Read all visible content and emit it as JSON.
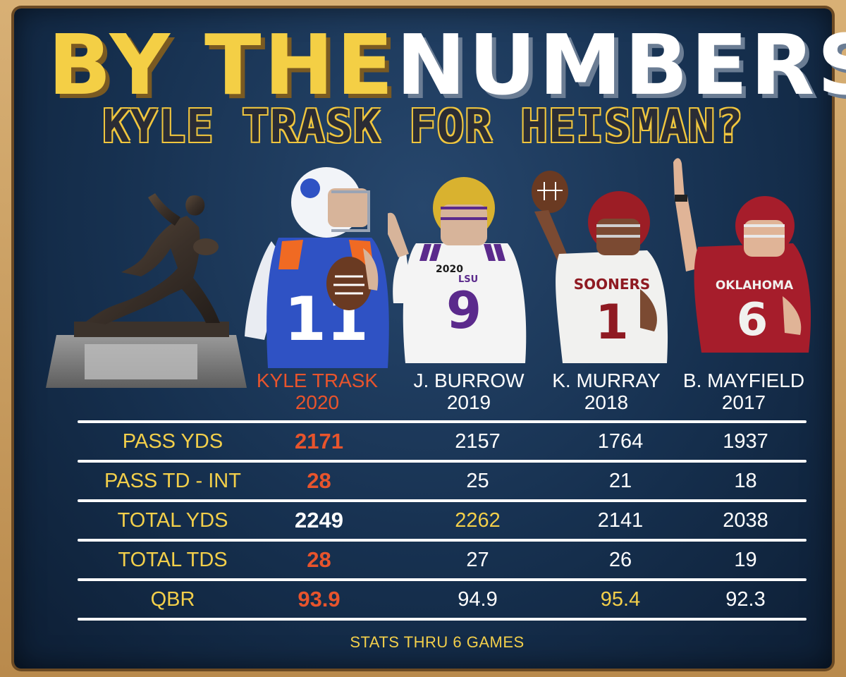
{
  "title": {
    "part1": "BY THE",
    "part2": "NUMBERS"
  },
  "subtitle": "KYLE TRASK FOR HEISMAN?",
  "players": [
    {
      "name": "KYLE  TRASK",
      "year": "2020",
      "jersey": "11",
      "colors": {
        "jersey": "#2f52c4",
        "helmet": "#f2f4f8",
        "accent": "#f06a23"
      }
    },
    {
      "name": "J. BURROW",
      "year": "2019",
      "jersey": "9",
      "colors": {
        "jersey": "#f4f4f4",
        "helmet": "#d9b22f",
        "accent": "#5b2a8c"
      }
    },
    {
      "name": "K. MURRAY",
      "year": "2018",
      "jersey": "1",
      "colors": {
        "jersey": "#f1f1ef",
        "helmet": "#9c1d25",
        "accent": "#8f1a22"
      }
    },
    {
      "name": "B. MAYFIELD",
      "year": "2017",
      "jersey": "6",
      "colors": {
        "jersey": "#a61d2b",
        "helmet": "#a61d2b",
        "accent": "#f1f1ef"
      }
    }
  ],
  "jersey_text": {
    "burrow_patch": "2020",
    "burrow_chest": "LSU",
    "murray_chest": "SOONERS",
    "mayfield_chest": "OKLAHOMA"
  },
  "stats": [
    {
      "label": "PASS YDS",
      "values": [
        "2171",
        "2157",
        "1764",
        "1937"
      ],
      "highlight": [
        "red",
        "white",
        "white",
        "white"
      ]
    },
    {
      "label": "PASS TD - INT",
      "values": [
        "28",
        "25",
        "21",
        "18"
      ],
      "highlight": [
        "red",
        "white",
        "white",
        "white"
      ]
    },
    {
      "label": "TOTAL YDS",
      "values": [
        "2249",
        "2262",
        "2141",
        "2038"
      ],
      "highlight": [
        "white",
        "gold",
        "white",
        "white"
      ]
    },
    {
      "label": "TOTAL TDS",
      "values": [
        "28",
        "27",
        "26",
        "19"
      ],
      "highlight": [
        "red",
        "white",
        "white",
        "white"
      ]
    },
    {
      "label": "QBR",
      "values": [
        "93.9",
        "94.9",
        "95.4",
        "92.3"
      ],
      "highlight": [
        "red",
        "white",
        "gold",
        "white"
      ]
    }
  ],
  "footnote": "STATS THRU 6 GAMES",
  "icons": {
    "trophy": "heisman-trophy-icon",
    "football": "football-icon"
  }
}
